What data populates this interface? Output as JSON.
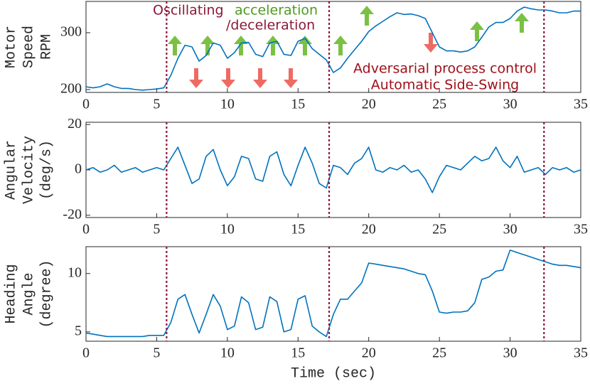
{
  "chart_data": [
    {
      "type": "line",
      "ylabel": [
        "Motor",
        "Speed",
        "RPM"
      ],
      "x": [
        0,
        0.5,
        1,
        1.5,
        2,
        2.5,
        3,
        3.5,
        4,
        4.5,
        5,
        5.5,
        6,
        6.5,
        7,
        7.5,
        8,
        8.5,
        9,
        9.5,
        10,
        10.5,
        11,
        11.5,
        12,
        12.5,
        13,
        13.5,
        14,
        14.5,
        15,
        15.5,
        16,
        16.5,
        17,
        17.5,
        18,
        18.5,
        19,
        19.5,
        20,
        20.5,
        21,
        21.5,
        22,
        22.5,
        23,
        23.5,
        24,
        24.5,
        25,
        25.5,
        26,
        26.5,
        27,
        27.5,
        28,
        28.5,
        29,
        29.5,
        30,
        30.5,
        31,
        31.5,
        32,
        32.5,
        33,
        33.5,
        34,
        34.5,
        35
      ],
      "series": [
        {
          "color": "#0072bd",
          "values": [
            205,
            203,
            205,
            210,
            205,
            202,
            202,
            200,
            199,
            200,
            201,
            203,
            225,
            255,
            278,
            275,
            250,
            260,
            282,
            278,
            255,
            265,
            282,
            283,
            262,
            258,
            282,
            285,
            262,
            260,
            285,
            290,
            272,
            262,
            252,
            230,
            238,
            255,
            270,
            285,
            302,
            312,
            320,
            328,
            335,
            332,
            333,
            330,
            325,
            300,
            275,
            268,
            268,
            266,
            268,
            275,
            292,
            310,
            318,
            318,
            325,
            338,
            345,
            342,
            340,
            340,
            338,
            335,
            335,
            338,
            338
          ]
        }
      ],
      "xlim": [
        0,
        35
      ],
      "xticks": [
        0,
        5,
        10,
        15,
        20,
        25,
        30,
        35
      ],
      "ylim": [
        195,
        355
      ],
      "yticks": [
        200,
        300
      ],
      "vlines": [
        5.7,
        17.2,
        32.4
      ],
      "vline_color": "#8b1a3a",
      "annotations": [
        {
          "text": "Oscillating",
          "color": "#8b1a3a"
        },
        {
          "text": "acceleration",
          "color": "#4f9a1f"
        },
        {
          "text": "/deceleration",
          "color": "#8b1a3a"
        },
        {
          "text": "Adversarial process control",
          "color": "#a0101a"
        },
        {
          "text": "Automatic Side-Swing",
          "color": "#a0101a"
        }
      ]
    },
    {
      "type": "line",
      "ylabel": [
        "Angular",
        "Velocity",
        "(deg/s)"
      ],
      "x": [
        0,
        0.5,
        1,
        1.5,
        2,
        2.5,
        3,
        3.5,
        4,
        4.5,
        5,
        5.5,
        6,
        6.5,
        7,
        7.5,
        8,
        8.5,
        9,
        9.5,
        10,
        10.5,
        11,
        11.5,
        12,
        12.5,
        13,
        13.5,
        14,
        14.5,
        15,
        15.5,
        16,
        16.5,
        17,
        17.5,
        18,
        18.5,
        19,
        19.5,
        20,
        20.5,
        21,
        21.5,
        22,
        22.5,
        23,
        23.5,
        24,
        24.5,
        25,
        25.5,
        26,
        26.5,
        27,
        27.5,
        28,
        28.5,
        29,
        29.5,
        30,
        30.5,
        31,
        31.5,
        32,
        32.5,
        33,
        33.5,
        34,
        34.5,
        35
      ],
      "series": [
        {
          "color": "#0072bd",
          "values": [
            0,
            1,
            -1,
            0,
            2,
            -1,
            0,
            1,
            -1,
            0,
            1,
            0,
            5,
            10,
            2,
            -6,
            -4,
            6,
            9,
            0,
            -7,
            -3,
            6,
            5,
            -4,
            -5,
            6,
            8,
            -2,
            -7,
            2,
            10,
            3,
            -6,
            -8,
            2,
            1,
            -2,
            3,
            5,
            10,
            0,
            -1,
            1,
            0,
            2,
            -1,
            0,
            -4,
            -10,
            -3,
            2,
            1,
            0,
            3,
            6,
            4,
            5,
            10,
            4,
            1,
            6,
            -1,
            0,
            1,
            -2,
            1,
            0,
            1,
            -1,
            0
          ]
        }
      ],
      "xlim": [
        0,
        35
      ],
      "xticks": [
        0,
        5,
        10,
        15,
        20,
        25,
        30,
        35
      ],
      "ylim": [
        -21,
        21
      ],
      "yticks": [
        -20,
        0,
        20
      ],
      "vlines": [
        5.7,
        17.2,
        32.4
      ],
      "vline_color": "#8b1a3a"
    },
    {
      "type": "line",
      "ylabel": [
        "Heading",
        "Angle",
        "(degree)"
      ],
      "xlabel": "Time (sec)",
      "x": [
        0,
        0.5,
        1,
        1.5,
        2,
        2.5,
        3,
        3.5,
        4,
        4.5,
        5,
        5.5,
        6,
        6.5,
        7,
        7.5,
        8,
        8.5,
        9,
        9.5,
        10,
        10.5,
        11,
        11.5,
        12,
        12.5,
        13,
        13.5,
        14,
        14.5,
        15,
        15.5,
        16,
        16.5,
        17,
        17.5,
        18,
        18.5,
        19,
        19.5,
        20,
        20.5,
        21,
        21.5,
        22,
        22.5,
        23,
        23.5,
        24,
        24.5,
        25,
        25.5,
        26,
        26.5,
        27,
        27.5,
        28,
        28.5,
        29,
        29.5,
        30,
        30.5,
        31,
        31.5,
        32,
        32.5,
        33,
        33.5,
        34,
        34.5,
        35
      ],
      "series": [
        {
          "color": "#0072bd",
          "values": [
            4.9,
            4.8,
            4.7,
            4.6,
            4.6,
            4.6,
            4.6,
            4.6,
            4.6,
            4.7,
            4.7,
            4.7,
            5.8,
            7.8,
            8.2,
            6.5,
            4.9,
            6.5,
            8.2,
            7.2,
            5.2,
            5.5,
            8.0,
            7.5,
            5.2,
            5.4,
            8.0,
            7.6,
            5.0,
            5.2,
            7.8,
            8.1,
            5.5,
            5.0,
            4.6,
            6.5,
            7.8,
            7.8,
            8.5,
            9.2,
            10.9,
            10.8,
            10.7,
            10.6,
            10.5,
            10.4,
            10.2,
            10.0,
            9.9,
            8.5,
            6.7,
            6.6,
            6.7,
            6.7,
            6.8,
            7.5,
            9.5,
            9.7,
            10.2,
            10.3,
            12.0,
            11.8,
            11.6,
            11.4,
            11.2,
            11.0,
            10.8,
            10.7,
            10.7,
            10.6,
            10.5
          ]
        }
      ],
      "xlim": [
        0,
        35
      ],
      "xticks": [
        0,
        5,
        10,
        15,
        20,
        25,
        30,
        35
      ],
      "ylim": [
        4.2,
        12.3
      ],
      "yticks": [
        5,
        10
      ],
      "vlines": [
        5.7,
        17.2,
        32.4
      ],
      "vline_color": "#8b1a3a"
    }
  ]
}
